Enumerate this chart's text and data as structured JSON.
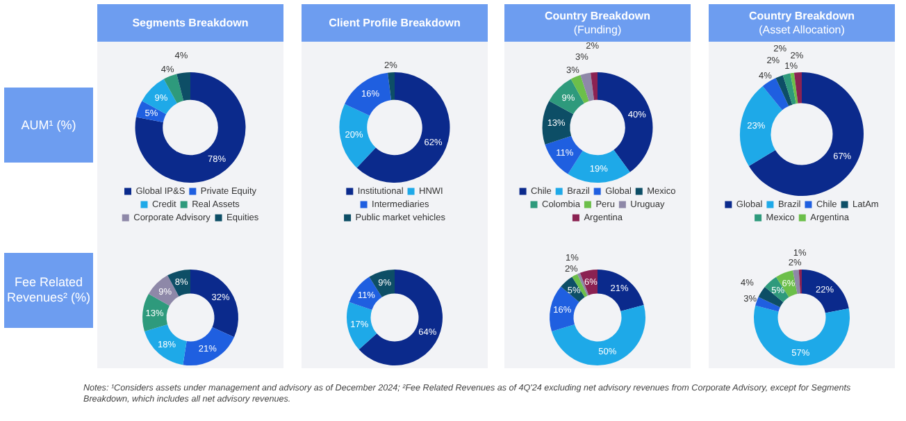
{
  "chart_data": [
    {
      "type": "other",
      "annotations": [
        "AUM¹ (%)",
        "Fee Related Revenues² (%)",
        "Notes: ¹Considers assets under management and advisory as of December 2024; ²Fee Related Revenues as of 4Q'24 excluding net advisory revenues from Corporate Advisory, except for Segments Breakdown, which includes all net advisory revenues."
      ]
    },
    {
      "type": "donut",
      "title": "Segments Breakdown",
      "legend": "bottom",
      "categories": [
        "Global IP&S",
        "Private Equity",
        "Credit",
        "Real Assets",
        "Corporate Advisory",
        "Equities"
      ],
      "values": [
        78,
        5,
        9,
        4,
        null,
        4
      ],
      "value_labels": [
        "78%",
        "5%",
        "9%",
        "4%",
        null,
        "4%"
      ],
      "colors": [
        "#0b2a8c",
        "#1f5fe0",
        "#1ea9e8",
        "#2e9a7c",
        "#8e88a8",
        "#0d4e66"
      ]
    },
    {
      "type": "donut",
      "title": "Client Profile Breakdown",
      "legend": "bottom",
      "categories": [
        "Institutional",
        "HNWI",
        "Intermediaries",
        "Public market vehicles"
      ],
      "values": [
        62,
        20,
        16,
        2
      ],
      "value_labels": [
        "62%",
        "20%",
        "16%",
        "2%"
      ],
      "colors": [
        "#0b2a8c",
        "#1ea9e8",
        "#1f5fe0",
        "#0d4e66"
      ]
    },
    {
      "type": "donut",
      "title": "Country Breakdown",
      "subtitle": "(Funding)",
      "legend": "bottom",
      "categories": [
        "Chile",
        "Brazil",
        "Global",
        "Mexico",
        "Colombia",
        "Peru",
        "Uruguay",
        "Argentina"
      ],
      "values": [
        40,
        19,
        11,
        13,
        9,
        3,
        3,
        2
      ],
      "value_labels": [
        "40%",
        "19%",
        "11%",
        "13%",
        "9%",
        "3%",
        "3%",
        "2%"
      ],
      "colors": [
        "#0b2a8c",
        "#1ea9e8",
        "#1f5fe0",
        "#0d4e66",
        "#2e9a7c",
        "#6cbf4a",
        "#8e88a8",
        "#8b2252"
      ]
    },
    {
      "type": "donut",
      "title": "Country Breakdown",
      "subtitle": "(Asset Allocation)",
      "legend": "bottom",
      "categories": [
        "Global",
        "Brazil",
        "Chile",
        "LatAm",
        "Mexico",
        "Argentina",
        null
      ],
      "values": [
        67,
        23,
        4,
        2,
        2,
        1,
        2
      ],
      "value_labels": [
        "67%",
        "23%",
        "4%",
        "2%",
        "2%",
        "1%",
        "2%"
      ],
      "colors": [
        "#0b2a8c",
        "#1ea9e8",
        "#1f5fe0",
        "#0d4e66",
        "#2e9a7c",
        "#6cbf4a",
        "#8b2252"
      ]
    },
    {
      "type": "donut",
      "categories": [
        null,
        null,
        null,
        null,
        null,
        null
      ],
      "values": [
        32,
        21,
        18,
        13,
        9,
        8
      ],
      "value_labels": [
        "32%",
        "21%",
        "18%",
        "13%",
        "9%",
        "8%"
      ],
      "colors": [
        "#0b2a8c",
        "#1f5fe0",
        "#1ea9e8",
        "#2e9a7c",
        "#8e88a8",
        "#0d4e66"
      ]
    },
    {
      "type": "donut",
      "categories": [
        null,
        null,
        null,
        null
      ],
      "values": [
        64,
        17,
        11,
        9
      ],
      "value_labels": [
        "64%",
        "17%",
        "11%",
        "9%"
      ],
      "colors": [
        "#0b2a8c",
        "#1ea9e8",
        "#1f5fe0",
        "#0d4e66"
      ]
    },
    {
      "type": "donut",
      "categories": [
        null,
        null,
        null,
        null,
        null,
        null,
        null,
        null
      ],
      "values": [
        21,
        50,
        16,
        5,
        null,
        2,
        1,
        6
      ],
      "value_labels": [
        "21%",
        "50%",
        "16%",
        "5%",
        null,
        "2%",
        "1%",
        "6%"
      ],
      "colors": [
        "#0b2a8c",
        "#1ea9e8",
        "#1f5fe0",
        "#0d4e66",
        "#2e9a7c",
        "#6cbf4a",
        "#8e88a8",
        "#8b2252"
      ]
    },
    {
      "type": "donut",
      "categories": [
        null,
        null,
        null,
        null,
        null,
        null,
        null,
        null
      ],
      "values": [
        22,
        57,
        3,
        4,
        5,
        6,
        2,
        1
      ],
      "value_labels": [
        "22%",
        "57%",
        "3%",
        "4%",
        "5%",
        "6%",
        "2%",
        "1%"
      ],
      "colors": [
        "#0b2a8c",
        "#1ea9e8",
        "#1f5fe0",
        "#0d4e66",
        "#2e9a7c",
        "#6cbf4a",
        "#8e88a8",
        "#8b2252"
      ]
    }
  ]
}
